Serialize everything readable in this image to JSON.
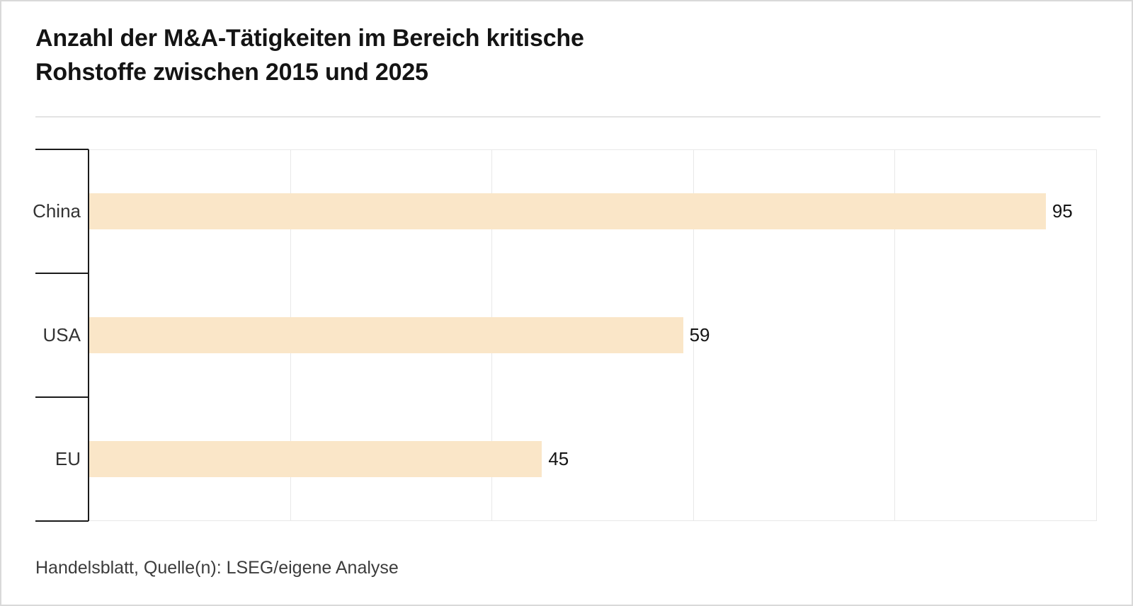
{
  "header": {
    "title_line1": "Anzahl der M&A-Tätigkeiten im Bereich kritische",
    "title_line2": "Rohstoffe zwischen 2015 und 2025"
  },
  "chart_data": {
    "type": "bar",
    "orientation": "horizontal",
    "title": "Anzahl der M&A-Tätigkeiten im Bereich kritische Rohstoffe zwischen 2015 und 2025",
    "categories": [
      "China",
      "USA",
      "EU"
    ],
    "values": [
      95,
      59,
      45
    ],
    "value_labels": [
      "95",
      "59",
      "45"
    ],
    "xlabel": "",
    "ylabel": "",
    "xlim": [
      0,
      100
    ],
    "gridlines_x": [
      20,
      40,
      60,
      80,
      100
    ],
    "grid": "vertical-only",
    "legend": "none",
    "bar_color": "#fae6c8"
  },
  "footer": {
    "source": "Handelsblatt, Quelle(n): LSEG/eigene Analyse"
  },
  "colors": {
    "bar": "#fae6c8",
    "axis": "#1a1a1a",
    "grid": "#e8e8e8",
    "divider": "#e3e3e3",
    "frame_border": "#d9d9d9",
    "title_text": "#141414",
    "category_text": "#333333",
    "value_text": "#141414",
    "source_text": "#3c3c3c"
  }
}
